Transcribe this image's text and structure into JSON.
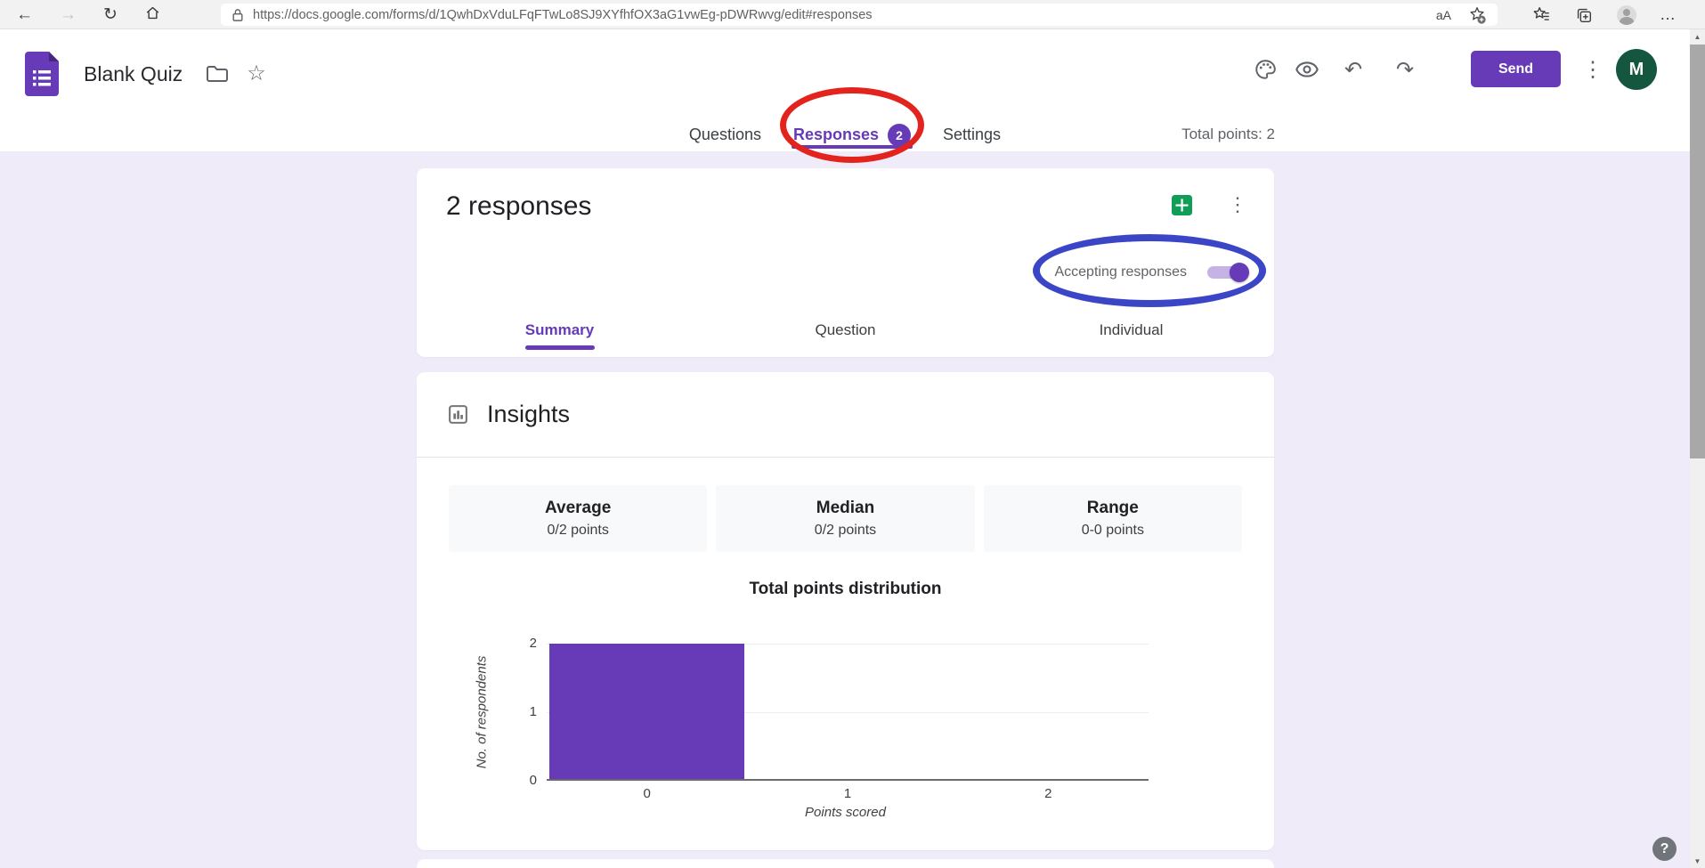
{
  "browser": {
    "url": "https://docs.google.com/forms/d/1QwhDxVduLFqFTwLo8SJ9XYfhfOX3aG1vwEg-pDWRwvg/edit#responses"
  },
  "icons": {
    "back": "←",
    "forward": "→",
    "refresh": "↻",
    "read_aloud": "aA",
    "undo": "↶",
    "redo": "↷",
    "kebab": "⋮",
    "more": "…",
    "star": "☆",
    "help": "?",
    "scroll_up": "▲",
    "scroll_down": "▼"
  },
  "header": {
    "title": "Blank Quiz",
    "send": "Send",
    "avatar": "M"
  },
  "tabbar": {
    "questions": "Questions",
    "responses": "Responses",
    "badge": "2",
    "settings": "Settings",
    "total_points": "Total points: 2"
  },
  "responses_card": {
    "title": "2 responses",
    "accepting": "Accepting responses",
    "subtabs": [
      {
        "label": "Summary",
        "active": true
      },
      {
        "label": "Question",
        "active": false
      },
      {
        "label": "Individual",
        "active": false
      }
    ]
  },
  "insights": {
    "title": "Insights",
    "stats": [
      {
        "label": "Average",
        "value": "0/2 points"
      },
      {
        "label": "Median",
        "value": "0/2 points"
      },
      {
        "label": "Range",
        "value": "0-0 points"
      }
    ],
    "chart": {
      "type": "bar",
      "title": "Total points distribution",
      "xlabel": "Points scored",
      "ylabel": "No. of respondents",
      "categories": [
        "0",
        "1",
        "2"
      ],
      "values": [
        2,
        0,
        0
      ],
      "y_ticks": [
        0,
        1,
        2
      ],
      "ylim": [
        0,
        2
      ],
      "grid": true,
      "bar_color": "#673ab7"
    }
  },
  "colors": {
    "accent": "#673ab7",
    "page_bg": "#f0ebf8",
    "sheets_green": "#0f9d58",
    "annotation_red": "#e3231d",
    "annotation_blue": "#3a46c6"
  }
}
